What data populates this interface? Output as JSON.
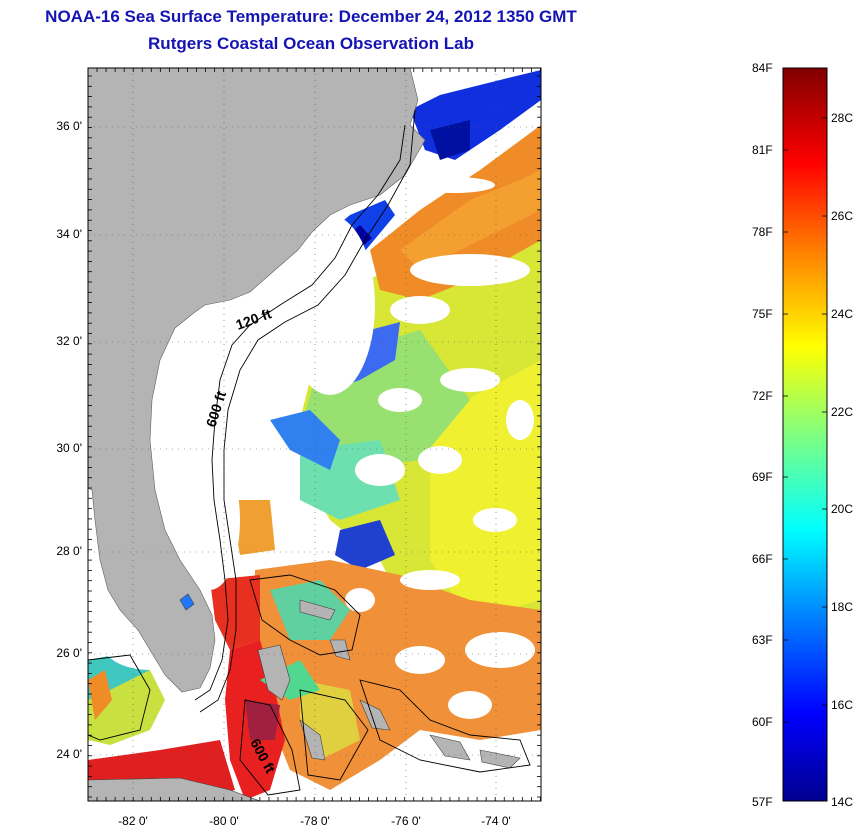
{
  "header": {
    "title_line1": "NOAA-16 Sea Surface Temperature:  December 24, 2012 1350 GMT",
    "title_line2": "Rutgers Coastal Ocean Observation Lab"
  },
  "map": {
    "latitude_labels": [
      "36 0'",
      "34 0'",
      "32 0'",
      "30 0'",
      "28 0'",
      "26 0'",
      "24 0'"
    ],
    "latitude_values": [
      36,
      34,
      32,
      30,
      28,
      26,
      24
    ],
    "longitude_labels": [
      "-82 0'",
      "-80 0'",
      "-78 0'",
      "-76 0'",
      "-74 0'"
    ],
    "longitude_values": [
      -82,
      -80,
      -78,
      -76,
      -74
    ],
    "lat_range": [
      23.0,
      37.1
    ],
    "lon_range": [
      -83.0,
      -73.0
    ],
    "land_color": "#b4b4b4",
    "cloud_color": "#ffffff",
    "isobath_labels": [
      "120 ft",
      "600 ft",
      "600 ft"
    ]
  },
  "colorbar": {
    "fahrenheit_labels": [
      "84F",
      "81F",
      "78F",
      "75F",
      "72F",
      "69F",
      "66F",
      "63F",
      "60F",
      "57F"
    ],
    "celsius_labels": [
      "28C",
      "26C",
      "24C",
      "22C",
      "20C",
      "18C",
      "16C",
      "14C"
    ],
    "range_celsius": [
      14,
      29
    ],
    "colors": [
      "#00008f",
      "#0000ff",
      "#0080ff",
      "#00ffff",
      "#80ff80",
      "#ffff00",
      "#ff8000",
      "#ff0000",
      "#800000"
    ]
  }
}
